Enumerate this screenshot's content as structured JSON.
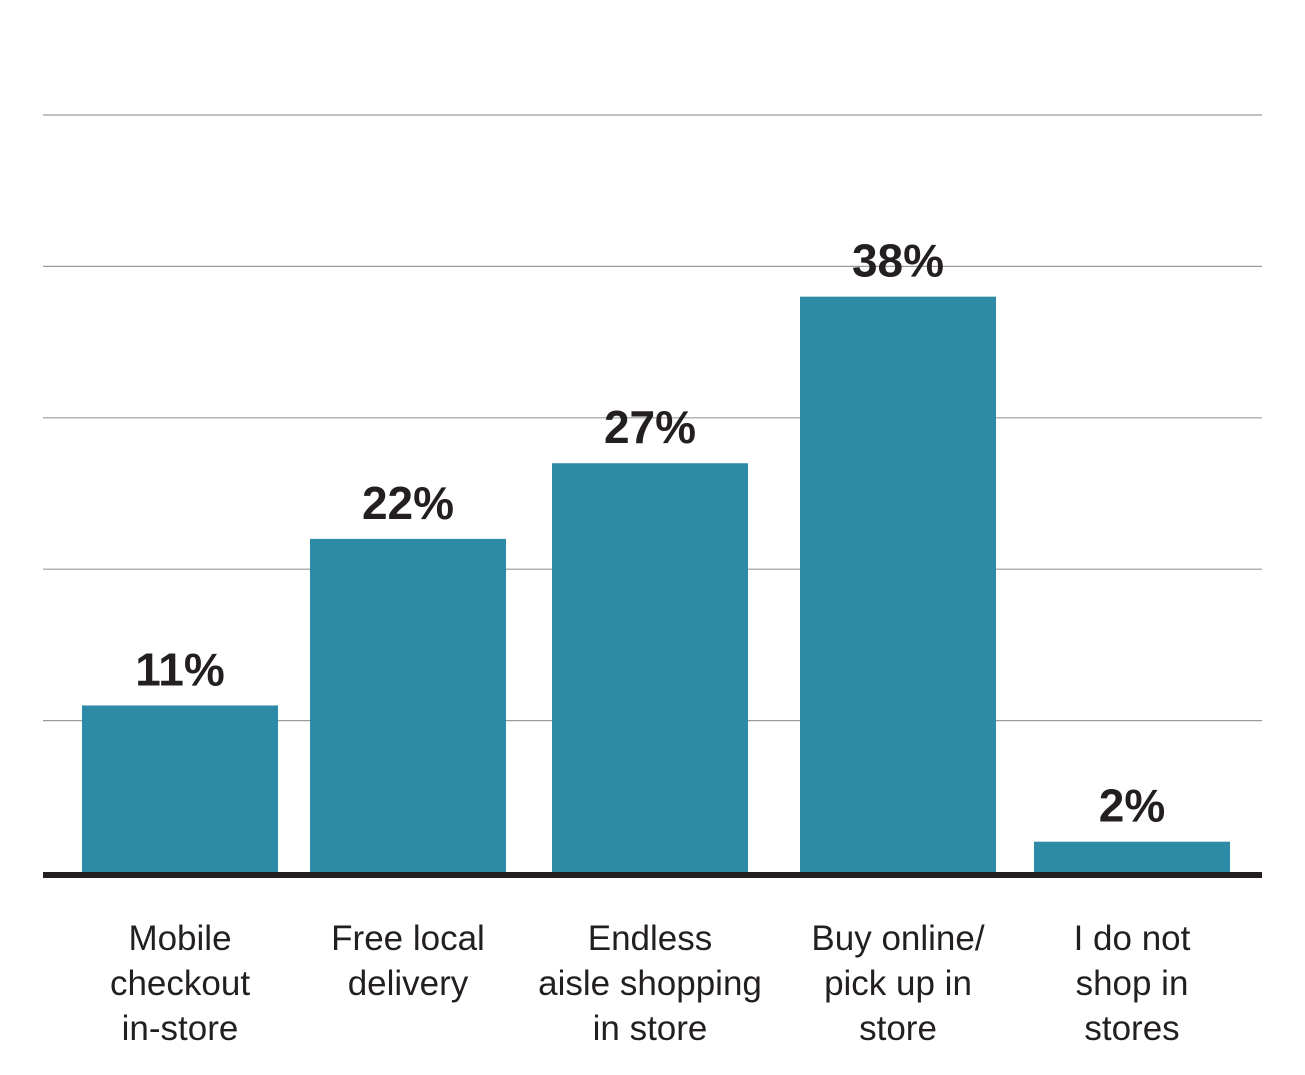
{
  "chart_data": {
    "type": "bar",
    "categories": [
      "Mobile checkout in-store",
      "Free local delivery",
      "Endless aisle shopping in store",
      "Buy online/ pick up in store",
      "I do not shop in stores"
    ],
    "category_lines": [
      [
        "Mobile",
        "checkout",
        "in-store"
      ],
      [
        "Free local",
        "delivery"
      ],
      [
        "Endless",
        "aisle shopping",
        "in store"
      ],
      [
        "Buy online/",
        "pick up in",
        "store"
      ],
      [
        "I do not",
        "shop in",
        "stores"
      ]
    ],
    "values": [
      11,
      22,
      27,
      38,
      2
    ],
    "value_labels": [
      "11%",
      "22%",
      "27%",
      "38%",
      "2%"
    ],
    "ylim": [
      0,
      50
    ],
    "grid": true,
    "bar_color": "#2e8ba6",
    "text_color": "#231f20",
    "grid_color": "#9a9a9a"
  }
}
